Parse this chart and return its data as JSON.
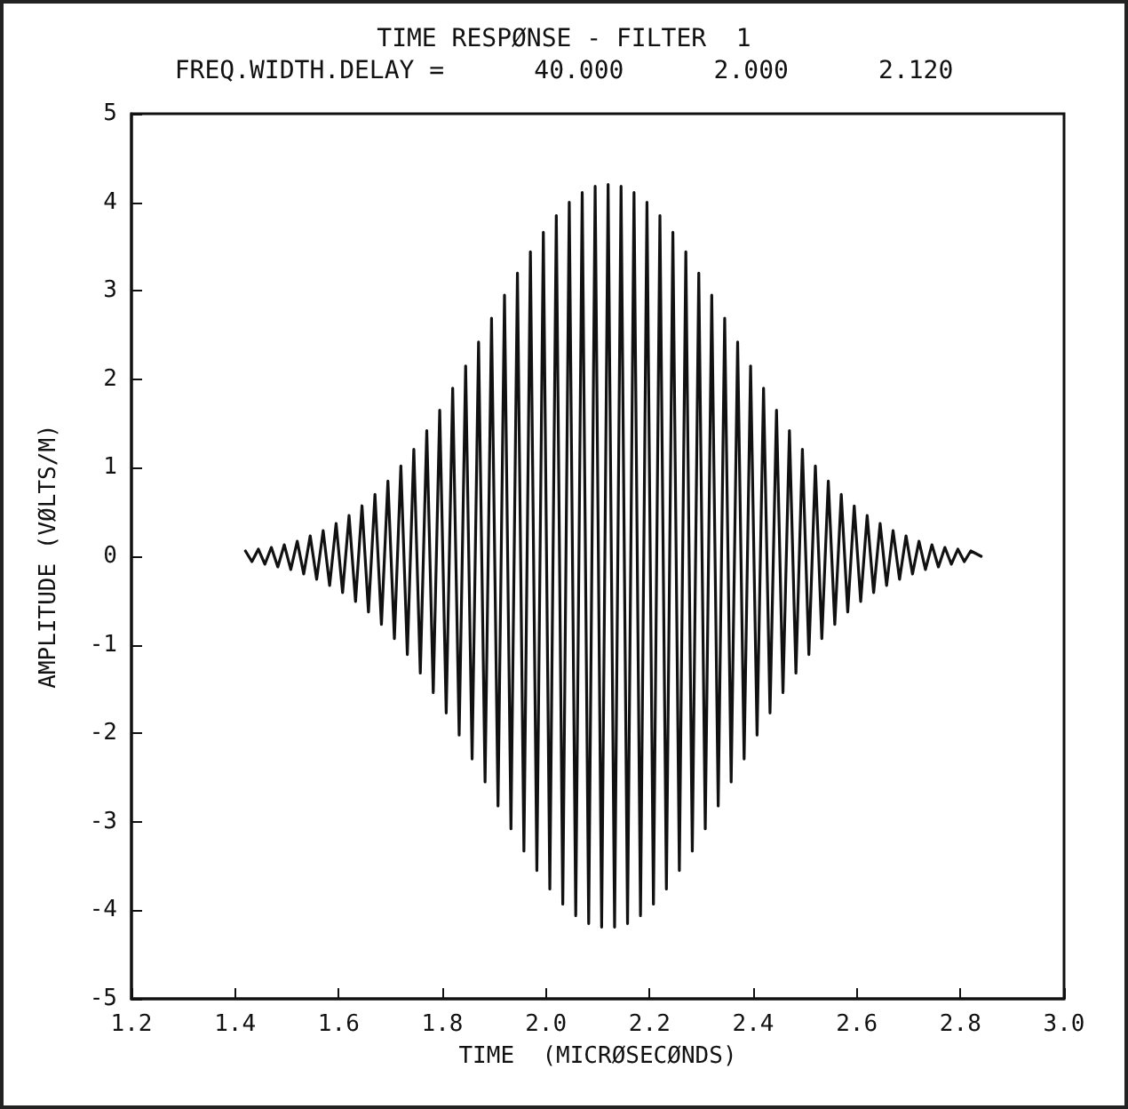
{
  "chart_data": {
    "type": "line",
    "title": "TIME RESPØNSE - FILTER  1",
    "subtitle": "FREQ.WIDTH.DELAY =      40.000      2.000      2.120",
    "xlabel": "TIME  (MICRØSECØNDS)",
    "ylabel": "AMPLITUDE (VØLTS/M)",
    "x": [
      1.42,
      1.4325,
      1.445,
      1.4575,
      1.47,
      1.4825,
      1.495,
      1.5075,
      1.52,
      1.5325,
      1.545,
      1.5575,
      1.57,
      1.5825,
      1.595,
      1.6075,
      1.62,
      1.6325,
      1.645,
      1.6575,
      1.67,
      1.6825,
      1.695,
      1.7075,
      1.72,
      1.7325,
      1.745,
      1.7575,
      1.77,
      1.7825,
      1.795,
      1.8075,
      1.82,
      1.8325,
      1.845,
      1.8575,
      1.87,
      1.8825,
      1.895,
      1.9075,
      1.92,
      1.9325,
      1.945,
      1.9575,
      1.97,
      1.9825,
      1.995,
      2.0075,
      2.02,
      2.0325,
      2.045,
      2.0575,
      2.07,
      2.0825,
      2.095,
      2.1075,
      2.12,
      2.1325,
      2.145,
      2.1575,
      2.17,
      2.1825,
      2.195,
      2.2075,
      2.22,
      2.2325,
      2.245,
      2.2575,
      2.27,
      2.2825,
      2.295,
      2.3075,
      2.32,
      2.3325,
      2.345,
      2.3575,
      2.37,
      2.3825,
      2.395,
      2.4075,
      2.42,
      2.4325,
      2.445,
      2.4575,
      2.47,
      2.4825,
      2.495,
      2.5075,
      2.52,
      2.5325,
      2.545,
      2.5575,
      2.57,
      2.5825,
      2.595,
      2.6075,
      2.62,
      2.6325,
      2.645,
      2.6575,
      2.67,
      2.6825,
      2.695,
      2.7075,
      2.72,
      2.7325,
      2.745,
      2.7575,
      2.77,
      2.7825,
      2.795,
      2.8075,
      2.82,
      2.84
    ],
    "series": [
      {
        "color": "#111111",
        "values": [
          0.06,
          -0.06,
          0.08,
          -0.09,
          0.1,
          -0.12,
          0.13,
          -0.15,
          0.17,
          -0.2,
          0.23,
          -0.26,
          0.29,
          -0.33,
          0.37,
          -0.41,
          0.46,
          -0.51,
          0.57,
          -0.63,
          0.7,
          -0.77,
          0.85,
          -0.93,
          1.02,
          -1.11,
          1.21,
          -1.32,
          1.42,
          -1.54,
          1.65,
          -1.77,
          1.9,
          -2.02,
          2.15,
          -2.29,
          2.42,
          -2.55,
          2.69,
          -2.82,
          2.95,
          -3.08,
          3.2,
          -3.33,
          3.44,
          -3.55,
          3.66,
          -3.76,
          3.85,
          -3.93,
          4.0,
          -4.06,
          4.11,
          -4.15,
          4.18,
          -4.19,
          4.2,
          -4.19,
          4.18,
          -4.15,
          4.11,
          -4.06,
          4.0,
          -3.93,
          3.85,
          -3.76,
          3.66,
          -3.55,
          3.44,
          -3.33,
          3.2,
          -3.08,
          2.95,
          -2.82,
          2.69,
          -2.55,
          2.42,
          -2.29,
          2.15,
          -2.02,
          1.9,
          -1.77,
          1.65,
          -1.54,
          1.42,
          -1.32,
          1.21,
          -1.11,
          1.02,
          -0.93,
          0.85,
          -0.77,
          0.7,
          -0.63,
          0.57,
          -0.51,
          0.46,
          -0.41,
          0.37,
          -0.33,
          0.29,
          -0.26,
          0.23,
          -0.2,
          0.17,
          -0.15,
          0.13,
          -0.12,
          0.1,
          -0.09,
          0.08,
          -0.06,
          0.06,
          0
        ]
      }
    ],
    "xlim": [
      1.2,
      3.0
    ],
    "xticks": [
      1.2,
      1.4,
      1.6,
      1.8,
      {
        "value": 2,
        "label": "2.0"
      },
      2.2,
      2.4,
      2.6,
      2.8,
      {
        "value": 3,
        "label": "3.0"
      }
    ],
    "ylim": [
      -5,
      5
    ],
    "yticks": [
      -5,
      -4,
      -3,
      -2,
      -1,
      0,
      1,
      2,
      3,
      4,
      5
    ],
    "grid": false,
    "marker": "none",
    "line_style": "solid"
  }
}
